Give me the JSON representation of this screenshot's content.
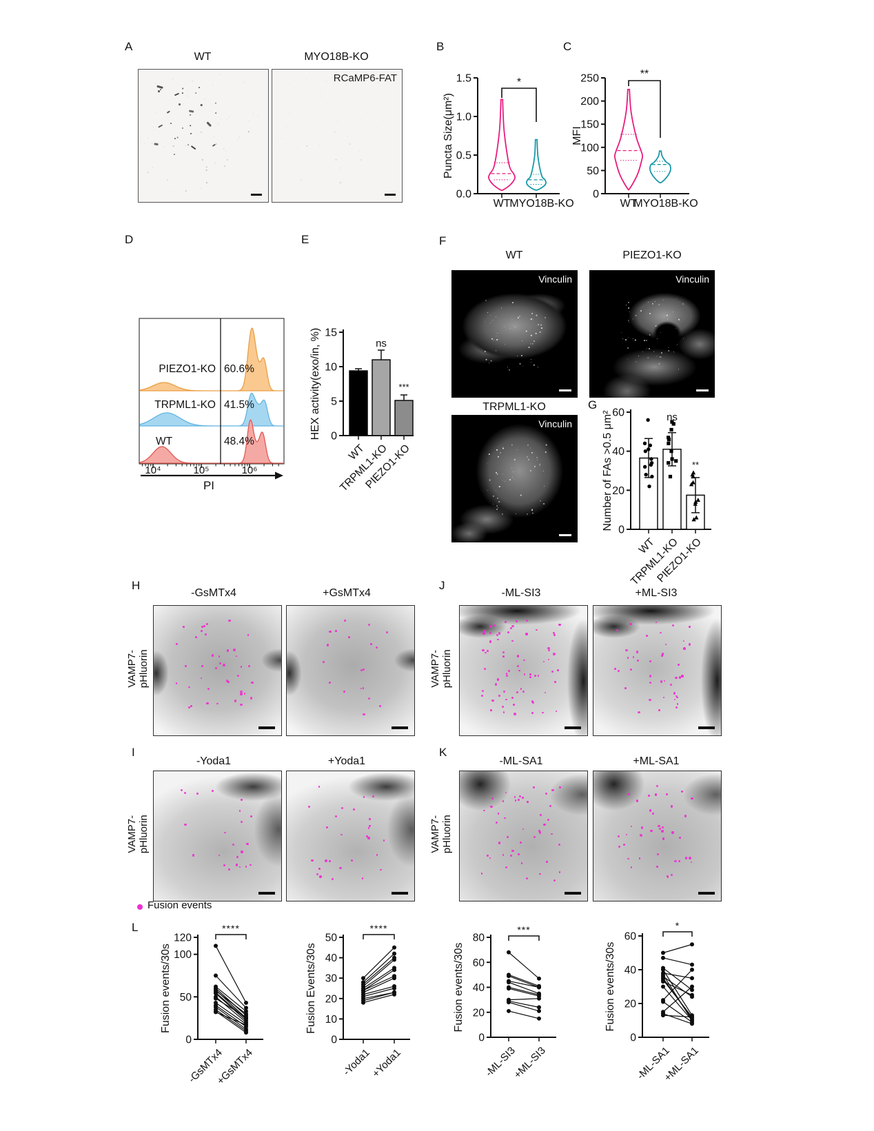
{
  "panel_labels": {
    "a": "A",
    "b": "B",
    "c": "C",
    "d": "D",
    "e": "E",
    "f": "F",
    "g": "G",
    "h": "H",
    "i": "I",
    "j": "J",
    "k": "K",
    "l": "L"
  },
  "panel_a": {
    "col_titles": [
      "WT",
      "MYO18B-KO"
    ],
    "overlay_label": "RCaMP6-FAT"
  },
  "panel_f": {
    "col_titles": [
      "WT",
      "PIEZO1-KO",
      "TRPML1-KO"
    ],
    "overlay_label": "Vinculin"
  },
  "panel_h": {
    "col_titles": [
      "-GsMTx4",
      "+GsMTx4"
    ]
  },
  "panel_i": {
    "col_titles": [
      "-Yoda1",
      "+Yoda1"
    ]
  },
  "panel_j": {
    "col_titles": [
      "-ML-SI3",
      "+ML-SI3"
    ]
  },
  "panel_k": {
    "col_titles": [
      "-ML-SA1",
      "+ML-SA1"
    ]
  },
  "side_label": {
    "line1": "VAMP7-",
    "line2": "pHluorin"
  },
  "legend": {
    "label": "Fusion events",
    "dot_color": "#ee2fd1"
  },
  "micrograph_fusion_dots": {
    "h_minus": 40,
    "h_plus": 19,
    "i_minus": 22,
    "i_plus": 27,
    "j_minus": 70,
    "j_plus": 42,
    "k_minus": 45,
    "k_plus": 40
  },
  "chart_data": [
    {
      "id": "puncta_violin",
      "type": "violin",
      "ylabel": "Puncta Size(μm²)",
      "categories": [
        "WT",
        "MYO18B-KO"
      ],
      "yticks": [
        "0.0",
        "0.5",
        "1.0",
        "1.5"
      ],
      "ylim": [
        0,
        1.5
      ],
      "significance": "*",
      "legend_position": "none",
      "grid": false,
      "series": [
        {
          "name": "WT",
          "color": "#e81c7e",
          "min": 0.05,
          "q1": 0.18,
          "median": 0.26,
          "q3": 0.4,
          "max": 1.22
        },
        {
          "name": "MYO18B-KO",
          "color": "#1899a8",
          "min": 0.05,
          "q1": 0.12,
          "median": 0.18,
          "q3": 0.25,
          "max": 0.7
        }
      ]
    },
    {
      "id": "mfi_violin",
      "type": "violin",
      "ylabel": "MFI",
      "categories": [
        "WT",
        "MYO18B-KO"
      ],
      "yticks": [
        "0",
        "50",
        "100",
        "150",
        "200",
        "250"
      ],
      "ylim": [
        0,
        250
      ],
      "significance": "**",
      "legend_position": "none",
      "grid": false,
      "series": [
        {
          "name": "WT",
          "color": "#e81c7e",
          "min": 12,
          "q1": 72,
          "median": 93,
          "q3": 128,
          "max": 225
        },
        {
          "name": "MYO18B-KO",
          "color": "#1899a8",
          "min": 25,
          "q1": 48,
          "median": 63,
          "q3": 70,
          "max": 92
        }
      ]
    },
    {
      "id": "flow_histograms",
      "type": "area",
      "xlabel": "PI",
      "xticks": [
        "10⁴",
        "10⁵",
        "10⁶"
      ],
      "grid": false,
      "rows": [
        {
          "name": "PIEZO1-KO",
          "percent": "60.6%",
          "fill": "#f9c990",
          "stroke": "#eb9e43"
        },
        {
          "name": "TRPML1-KO",
          "percent": "41.5%",
          "fill": "#a6d7f0",
          "stroke": "#62b5e2"
        },
        {
          "name": "WT",
          "percent": "48.4%",
          "fill": "#f5a9a4",
          "stroke": "#e05a52"
        }
      ]
    },
    {
      "id": "hex_bar",
      "type": "bar",
      "ylabel": "HEX activity(exo/in, %)",
      "categories": [
        "WT",
        "TRPML1-KO",
        "PIEZO1-KO"
      ],
      "values": [
        9.4,
        11.0,
        5.1
      ],
      "errors": [
        0.3,
        1.4,
        0.8
      ],
      "bar_colors": [
        "#000000",
        "#a6a6a6",
        "#8c8c8c"
      ],
      "yticks": [
        0,
        5,
        10,
        15
      ],
      "ylim": [
        0,
        15
      ],
      "annotations": [
        "",
        "ns",
        "***"
      ],
      "grid": false
    },
    {
      "id": "fa_bar",
      "type": "bar",
      "ylabel": "Number of FAs >0.5 μm²",
      "categories": [
        "WT",
        "TRPML1-KO",
        "PIEZO1-KO"
      ],
      "values": [
        36.5,
        41,
        17.5
      ],
      "errors": [
        10,
        8.5,
        9
      ],
      "yticks": [
        0,
        20,
        40,
        60
      ],
      "ylim": [
        0,
        60
      ],
      "annotations": [
        "",
        "ns",
        "**"
      ],
      "grid": false,
      "markers": [
        "circle",
        "square",
        "triangle"
      ],
      "points": [
        [
          56,
          44,
          43,
          41,
          40,
          36,
          34,
          33,
          32,
          28,
          27,
          22
        ],
        [
          55,
          54,
          51,
          47,
          46,
          44,
          40,
          36,
          35,
          34,
          27
        ],
        [
          29,
          28,
          27,
          24,
          23,
          15,
          14,
          13,
          6,
          5
        ]
      ]
    },
    {
      "id": "gsmtx4_pairs",
      "type": "paired-line",
      "ylabel": "Fusion events/30s",
      "categories": [
        "-GsMTx4",
        "+GsMTx4"
      ],
      "yticks": [
        0,
        50,
        100,
        120
      ],
      "ylim": [
        0,
        120
      ],
      "significance": "****",
      "grid": false,
      "pairs": [
        [
          110,
          43
        ],
        [
          75,
          37
        ],
        [
          62,
          33
        ],
        [
          60,
          28
        ],
        [
          58,
          25
        ],
        [
          57,
          30
        ],
        [
          55,
          24
        ],
        [
          54,
          22
        ],
        [
          50,
          20
        ],
        [
          48,
          26
        ],
        [
          43,
          18
        ],
        [
          40,
          15
        ],
        [
          38,
          12
        ],
        [
          35,
          10
        ],
        [
          33,
          8
        ],
        [
          32,
          17
        ]
      ]
    },
    {
      "id": "yoda1_pairs",
      "type": "paired-line",
      "ylabel": "Fusion Events/30s",
      "categories": [
        "-Yoda1",
        "+Yoda1"
      ],
      "yticks": [
        0,
        10,
        20,
        30,
        40,
        50
      ],
      "ylim": [
        0,
        50
      ],
      "significance": "****",
      "grid": false,
      "pairs": [
        [
          30,
          45
        ],
        [
          28,
          42
        ],
        [
          27,
          40
        ],
        [
          26,
          39
        ],
        [
          25,
          35
        ],
        [
          24,
          34
        ],
        [
          24,
          31
        ],
        [
          23,
          30
        ],
        [
          22,
          26
        ],
        [
          21,
          25
        ],
        [
          20,
          23
        ],
        [
          19,
          23
        ],
        [
          18,
          22
        ]
      ]
    },
    {
      "id": "mlsi3_pairs",
      "type": "paired-line",
      "ylabel": "Fusion events/30s",
      "categories": [
        "-ML-SI3",
        "+ML-SI3"
      ],
      "yticks": [
        0,
        20,
        40,
        60,
        80
      ],
      "ylim": [
        0,
        80
      ],
      "significance": "***",
      "grid": false,
      "pairs": [
        [
          68,
          47
        ],
        [
          50,
          41
        ],
        [
          49,
          40
        ],
        [
          45,
          40
        ],
        [
          44,
          35
        ],
        [
          40,
          34
        ],
        [
          39,
          33
        ],
        [
          30,
          31
        ],
        [
          29,
          24
        ],
        [
          28,
          21
        ],
        [
          21,
          15
        ]
      ]
    },
    {
      "id": "mlsa1_pairs",
      "type": "paired-line",
      "ylabel": "Fusion events/30s",
      "categories": [
        "-ML-SA1",
        "+ML-SA1"
      ],
      "yticks": [
        0,
        20,
        40,
        60
      ],
      "ylim": [
        0,
        60
      ],
      "significance": "*",
      "grid": false,
      "pairs": [
        [
          50,
          55
        ],
        [
          47,
          43
        ],
        [
          41,
          28
        ],
        [
          40,
          13
        ],
        [
          38,
          35
        ],
        [
          37,
          10
        ],
        [
          36,
          24
        ],
        [
          35,
          11
        ],
        [
          34,
          12
        ],
        [
          33,
          25
        ],
        [
          30,
          10
        ],
        [
          22,
          40
        ],
        [
          21,
          9
        ],
        [
          15,
          30
        ],
        [
          14,
          8
        ],
        [
          13,
          12
        ]
      ]
    }
  ]
}
